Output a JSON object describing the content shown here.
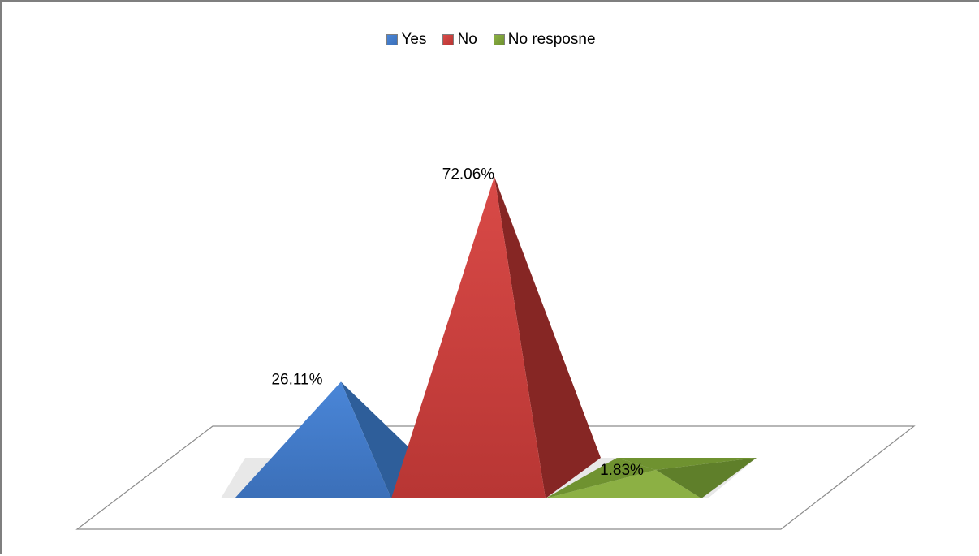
{
  "chart_data": {
    "type": "3d-pyramid-column",
    "series": [
      {
        "name": "Yes",
        "value": 26.11,
        "label": "26.11%",
        "colors": {
          "front": "#4a86d8",
          "side": "#2e5e9a",
          "front_dark": "#3b6fb8"
        }
      },
      {
        "name": "No",
        "value": 72.06,
        "label": "72.06%",
        "colors": {
          "front": "#d94a47",
          "side": "#862624",
          "front_dark": "#b83634"
        }
      },
      {
        "name": "No resposne",
        "value": 1.83,
        "label": "1.83%",
        "colors": {
          "front": "#8cb044",
          "side": "#5f7f2a",
          "front_dark": "#6f9230"
        }
      }
    ],
    "legend_position": "top-center",
    "value_range": [
      0,
      100
    ],
    "grid": false
  }
}
